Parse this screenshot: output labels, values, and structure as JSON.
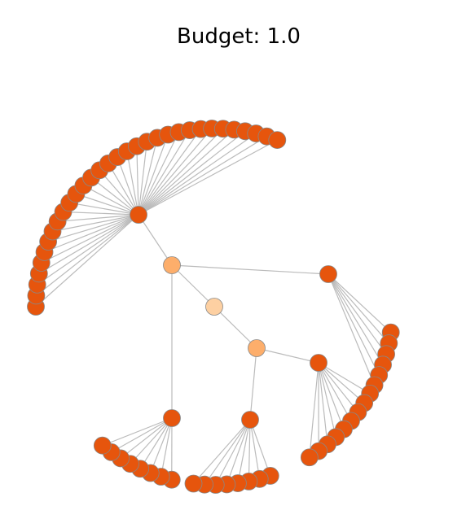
{
  "title": "Budget: 1.0",
  "colors": {
    "leaf": "#e6550d",
    "tier1": "#fdae6b",
    "root": "#fdd0a2",
    "edge": "#bbbbbb",
    "node_stroke": "#888888"
  },
  "tree": {
    "root": "r",
    "nodes": [
      {
        "id": "r",
        "parent": null,
        "level": "root"
      },
      {
        "id": "a",
        "parent": "r",
        "level": "tier1"
      },
      {
        "id": "b",
        "parent": "r",
        "level": "tier1"
      },
      {
        "id": "h1",
        "parent": "a",
        "level": "leaf",
        "children": 32
      },
      {
        "id": "h2",
        "parent": "a",
        "level": "leaf",
        "children": 6
      },
      {
        "id": "h3",
        "parent": "a",
        "level": "leaf",
        "children": 8
      },
      {
        "id": "h4",
        "parent": "b",
        "level": "leaf",
        "children": 9
      },
      {
        "id": "h5",
        "parent": "b",
        "level": "leaf",
        "children": 8
      }
    ]
  }
}
